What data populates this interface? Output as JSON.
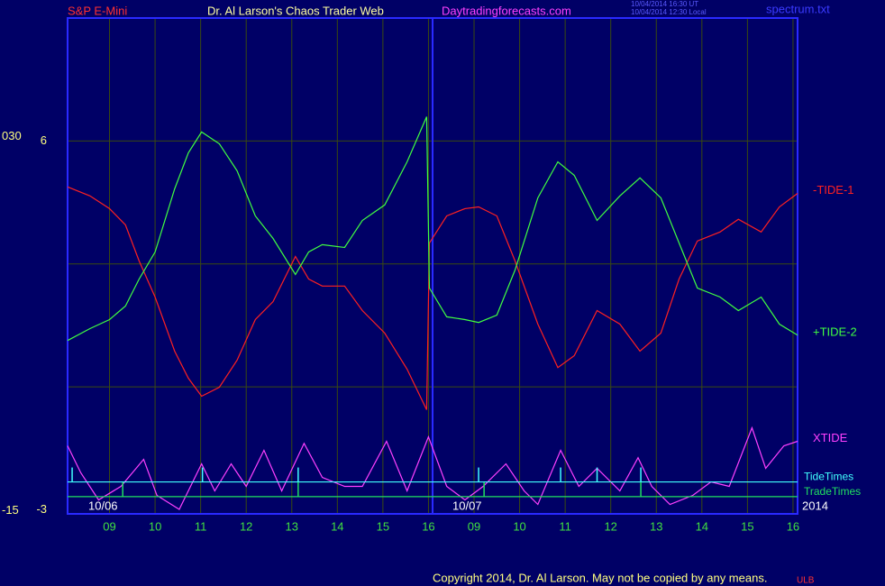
{
  "chart_data": {
    "type": "line",
    "instrument": "S&P E-Mini",
    "title": "Dr. Al Larson's Chaos Trader Web",
    "website": "Daytradingforecasts.com",
    "timestamps": [
      "10/04/2014 16:30 UT",
      "10/04/2014 12:30 Local"
    ],
    "file_label": "spectrum.txt",
    "copyright": "Copyright 2014, Dr. Al Larson. May not be copied by any means.",
    "mark": "ULB",
    "date_labels": [
      "10/06",
      "10/07",
      "2014"
    ],
    "xlim": [
      8.08,
      24.1
    ],
    "xticks": [
      {
        "value": 9,
        "label": "09"
      },
      10,
      11,
      12,
      13,
      14,
      15,
      16,
      {
        "value": 17,
        "label": "09"
      },
      {
        "value": 18,
        "label": "10"
      },
      {
        "value": 19,
        "label": "11"
      },
      {
        "value": 20,
        "label": "12"
      },
      {
        "value": 21,
        "label": "13"
      },
      {
        "value": 22,
        "label": "14"
      },
      {
        "value": 23,
        "label": "15"
      },
      {
        "value": 24,
        "label": "16"
      }
    ],
    "ylim": [
      -3.1,
      9
    ],
    "yticks": [
      -3,
      6
    ],
    "ygrid": [
      0,
      3,
      6
    ],
    "y2lim": [
      -15.4,
      44.3
    ],
    "y2ticks": [
      {
        "value": 30,
        "label": "030"
      },
      -15
    ],
    "grid": true,
    "x": [
      8.08,
      8.57,
      9,
      9.35,
      9.65,
      10,
      10.43,
      10.73,
      11.02,
      11.41,
      11.8,
      12.2,
      12.59,
      13.08,
      13.37,
      13.67,
      14.16,
      14.55,
      15.04,
      15.53,
      15.96,
      16.02,
      16.4,
      16.8,
      17.1,
      17.5,
      17.9,
      18.4,
      18.84,
      19.2,
      19.7,
      20.2,
      20.64,
      21.1,
      21.5,
      21.9,
      22.4,
      22.8,
      23.3,
      23.7,
      24.1
    ],
    "series": [
      {
        "name": "-TIDE-1",
        "color": "#ff2020",
        "values": [
          4.88,
          4.66,
          4.35,
          3.95,
          3.07,
          2.19,
          0.87,
          0.21,
          -0.23,
          -0.01,
          0.65,
          1.64,
          2.08,
          3.18,
          2.63,
          2.46,
          2.46,
          1.86,
          1.31,
          0.43,
          -0.56,
          3.51,
          4.17,
          4.35,
          4.39,
          4.17,
          3.07,
          1.53,
          0.47,
          0.76,
          1.86,
          1.53,
          0.87,
          1.31,
          2.63,
          3.56,
          3.78,
          4.09,
          3.78,
          4.39,
          4.72
        ]
      },
      {
        "name": "+TIDE-2",
        "color": "#40ff40",
        "values": [
          1.13,
          1.42,
          1.64,
          1.97,
          2.63,
          3.29,
          4.83,
          5.71,
          6.22,
          5.93,
          5.27,
          4.17,
          3.62,
          2.74,
          3.29,
          3.47,
          3.4,
          4.06,
          4.44,
          5.49,
          6.59,
          2.41,
          1.71,
          1.64,
          1.57,
          1.75,
          2.85,
          4.61,
          5.49,
          5.16,
          4.06,
          4.66,
          5.1,
          4.61,
          3.51,
          2.41,
          2.19,
          1.86,
          2.19,
          1.53,
          1.26
        ]
      },
      {
        "name": "XTIDE",
        "color": "#ff40ff",
        "x": [
          8.08,
          8.37,
          8.76,
          9.25,
          9.75,
          10.04,
          10.53,
          11.02,
          11.31,
          11.67,
          12,
          12.39,
          12.78,
          13.27,
          13.67,
          14.16,
          14.55,
          15.08,
          15.53,
          16,
          16.4,
          16.8,
          17.2,
          17.7,
          18.1,
          18.4,
          18.9,
          19.3,
          19.7,
          20.2,
          20.6,
          20.9,
          21.3,
          21.8,
          22.2,
          22.6,
          23.1,
          23.4,
          23.8,
          24.1
        ],
        "values": [
          -1.44,
          -2.1,
          -2.76,
          -2.43,
          -1.77,
          -2.65,
          -2.99,
          -1.88,
          -2.54,
          -1.88,
          -2.43,
          -1.55,
          -2.54,
          -1.38,
          -2.21,
          -2.43,
          -2.43,
          -1.33,
          -2.54,
          -1.22,
          -2.43,
          -2.76,
          -2.43,
          -1.88,
          -2.54,
          -2.87,
          -1.55,
          -2.43,
          -1.99,
          -2.54,
          -1.73,
          -2.43,
          -2.87,
          -2.65,
          -2.32,
          -2.43,
          -1,
          -1.99,
          -1.44,
          -1.33
        ]
      }
    ],
    "events": [
      {
        "name": "TideTimes",
        "color": "#40ffff",
        "level": -2.32,
        "times": [
          8.18,
          11.04,
          13.14,
          17.1,
          18.9,
          19.7,
          20.66
        ]
      },
      {
        "name": "TradeTimes",
        "color": "#20e060",
        "level": -2.68,
        "times": [
          9.29,
          13.14,
          17.22,
          20.66
        ]
      }
    ]
  }
}
